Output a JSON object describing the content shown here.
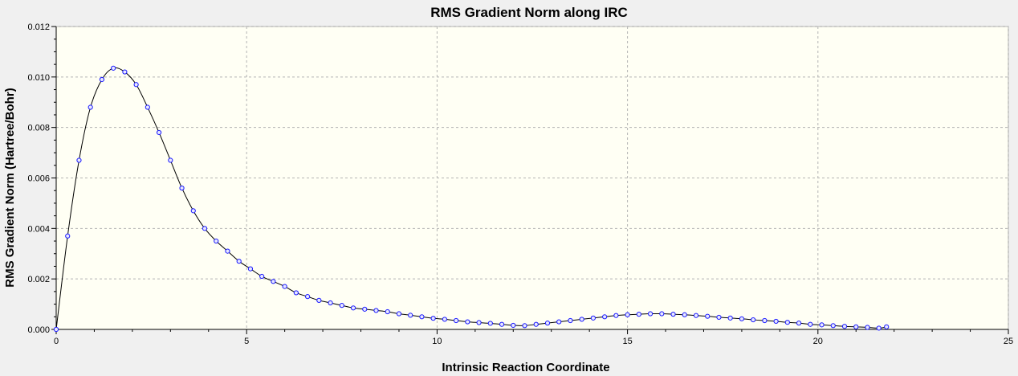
{
  "chart_data": {
    "type": "line",
    "title": "RMS Gradient Norm along IRC",
    "xlabel": "Intrinsic Reaction Coordinate",
    "ylabel": "RMS Gradient Norm (Hartree/Bohr)",
    "xlim": [
      0,
      25
    ],
    "ylim": [
      0,
      0.012
    ],
    "xticks": [
      0,
      5,
      10,
      15,
      20,
      25
    ],
    "xtick_labels": [
      "0",
      "5",
      "10",
      "15",
      "20",
      "25"
    ],
    "yticks": [
      0,
      0.002,
      0.004,
      0.006,
      0.008,
      0.01,
      0.012
    ],
    "ytick_labels": [
      "0.000",
      "0.002",
      "0.004",
      "0.006",
      "0.008",
      "0.010",
      "0.012"
    ],
    "grid": true,
    "legend": false,
    "colors": {
      "plot_background": "#fffff4",
      "frame_background": "#f0f0f0",
      "line": "#000000",
      "marker_stroke": "#1a1aff",
      "marker_fill": "#e8e8ff"
    },
    "series": [
      {
        "x": [
          0,
          0.3,
          0.6,
          0.9,
          1.2,
          1.5,
          1.8,
          2.1,
          2.4,
          2.7,
          3.0,
          3.3,
          3.6,
          3.9,
          4.2,
          4.5,
          4.8,
          5.1,
          5.4,
          5.7,
          6.0,
          6.3,
          6.6,
          6.9,
          7.2,
          7.5,
          7.8,
          8.1,
          8.4,
          8.7,
          9.0,
          9.3,
          9.6,
          9.9,
          10.2,
          10.5,
          10.8,
          11.1,
          11.4,
          11.7,
          12.0,
          12.3,
          12.6,
          12.9,
          13.2,
          13.5,
          13.8,
          14.1,
          14.4,
          14.7,
          15.0,
          15.3,
          15.6,
          15.9,
          16.2,
          16.5,
          16.8,
          17.1,
          17.4,
          17.7,
          18.0,
          18.3,
          18.6,
          18.9,
          19.2,
          19.5,
          19.8,
          20.1,
          20.4,
          20.7,
          21.0,
          21.3,
          21.6,
          21.8
        ],
        "y": [
          0.0,
          0.0037,
          0.0067,
          0.0088,
          0.0099,
          0.01035,
          0.0102,
          0.0097,
          0.0088,
          0.0078,
          0.0067,
          0.0056,
          0.0047,
          0.004,
          0.0035,
          0.0031,
          0.0027,
          0.0024,
          0.0021,
          0.0019,
          0.0017,
          0.00145,
          0.0013,
          0.00115,
          0.00105,
          0.00095,
          0.00085,
          0.0008,
          0.00075,
          0.0007,
          0.00062,
          0.00056,
          0.0005,
          0.00044,
          0.0004,
          0.00035,
          0.0003,
          0.00027,
          0.00024,
          0.0002,
          0.00016,
          0.00015,
          0.0002,
          0.00025,
          0.0003,
          0.00035,
          0.0004,
          0.00045,
          0.0005,
          0.00055,
          0.00058,
          0.0006,
          0.00062,
          0.00062,
          0.0006,
          0.00058,
          0.00055,
          0.00052,
          0.00048,
          0.00045,
          0.00042,
          0.00038,
          0.00035,
          0.00032,
          0.00028,
          0.00025,
          0.0002,
          0.00018,
          0.00015,
          0.00012,
          0.0001,
          8e-05,
          5e-05,
          0.0001
        ]
      }
    ]
  }
}
